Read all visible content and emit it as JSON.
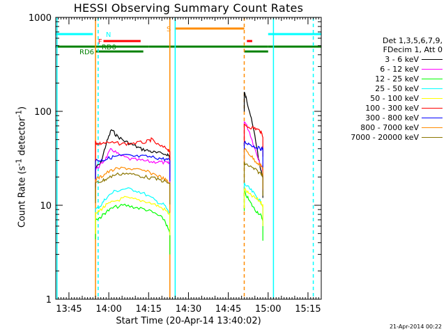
{
  "chart_data": {
    "type": "line",
    "title": "HESSI Observing Summary Count Rates",
    "xlabel": "Start Time (20-Apr-14 13:40:02)",
    "ylabel_html": "Count Rate (s<sup>-1</sup> detector<sup>-1</sup>)",
    "ylabel_text": "Count Rate (s-1 detector-1)",
    "yscale": "log",
    "ylim": [
      1,
      1000
    ],
    "yticks": [
      {
        "value": 1,
        "label": "1"
      },
      {
        "value": 10,
        "label": "10"
      },
      {
        "value": 100,
        "label": "100"
      },
      {
        "value": 1000,
        "label": "1000"
      }
    ],
    "xlim": [
      "13:40:02",
      "15:20:00"
    ],
    "xticks": [
      "13:45",
      "14:00",
      "14:15",
      "14:30",
      "14:45",
      "15:00",
      "15:15"
    ],
    "legend_placement": "right",
    "legend_header": [
      "Det 1,3,5,6,7,9,",
      "FDecim 1, Att 0"
    ],
    "series": [
      {
        "name": "3 - 6 keV",
        "color": "#000000",
        "x": [
          "13:55",
          "13:57",
          "13:59",
          "14:01",
          "14:03",
          "14:06",
          "14:09",
          "14:12",
          "14:15",
          "14:18",
          "14:22",
          "14:23",
          "14:51",
          "14:52",
          "14:53",
          "14:55",
          "14:57",
          "14:58"
        ],
        "values": [
          25,
          28,
          45,
          64,
          55,
          48,
          44,
          40,
          38,
          36,
          35,
          33,
          160,
          130,
          100,
          55,
          25,
          20
        ]
      },
      {
        "name": "6 - 12 keV",
        "color": "#ff00ff",
        "x": [
          "13:55",
          "13:57",
          "13:59",
          "14:01",
          "14:04",
          "14:08",
          "14:12",
          "14:16",
          "14:19",
          "14:22",
          "14:23",
          "14:51",
          "14:53",
          "14:55",
          "14:57",
          "14:58"
        ],
        "values": [
          24,
          27,
          32,
          40,
          34,
          31,
          30,
          29,
          29,
          28,
          28,
          80,
          60,
          40,
          28,
          24
        ]
      },
      {
        "name": "12 - 25 keV",
        "color": "#00ff00",
        "x": [
          "13:55",
          "13:57",
          "13:59",
          "14:02",
          "14:06",
          "14:10",
          "14:14",
          "14:18",
          "14:21",
          "14:23",
          "14:51",
          "14:53",
          "14:55",
          "14:57",
          "14:58"
        ],
        "values": [
          7,
          7.5,
          8.5,
          9.5,
          10,
          9.5,
          9,
          8,
          7,
          5,
          14,
          11,
          9,
          8,
          7
        ]
      },
      {
        "name": "25 - 50 keV",
        "color": "#00ffff",
        "x": [
          "13:55",
          "13:57",
          "13:59",
          "14:02",
          "14:06",
          "14:10",
          "14:14",
          "14:18",
          "14:21",
          "14:23",
          "14:51",
          "14:53",
          "14:55",
          "14:57",
          "14:58"
        ],
        "values": [
          9,
          10,
          12,
          14,
          15,
          14.5,
          13,
          11,
          10,
          8,
          17,
          15,
          13,
          11,
          10
        ]
      },
      {
        "name": "50 - 100 keV",
        "color": "#ffff00",
        "x": [
          "13:55",
          "13:57",
          "13:59",
          "14:02",
          "14:06",
          "14:10",
          "14:14",
          "14:18",
          "14:21",
          "14:23",
          "14:51",
          "14:53",
          "14:55",
          "14:57",
          "14:58"
        ],
        "values": [
          8,
          9,
          10,
          11,
          12,
          11.5,
          11,
          10,
          9,
          8,
          15,
          13,
          12,
          11,
          10
        ]
      },
      {
        "name": "100 - 300 keV",
        "color": "#ff0000",
        "x": [
          "13:55",
          "13:56",
          "13:58",
          "14:02",
          "14:06",
          "14:10",
          "14:14",
          "14:16",
          "14:19",
          "14:22",
          "14:23",
          "14:51",
          "14:53",
          "14:55",
          "14:57",
          "14:58"
        ],
        "values": [
          47,
          45,
          46,
          46,
          45,
          46,
          47,
          50,
          43,
          40,
          38,
          70,
          68,
          66,
          62,
          55
        ]
      },
      {
        "name": "300 - 800 keV",
        "color": "#0000ff",
        "x": [
          "13:55",
          "13:57",
          "13:59",
          "14:02",
          "14:06",
          "14:10",
          "14:14",
          "14:18",
          "14:21",
          "14:23",
          "14:51",
          "14:53",
          "14:55",
          "14:57",
          "14:58"
        ],
        "values": [
          30,
          30,
          31,
          33,
          34,
          33,
          33,
          32,
          31,
          30,
          47,
          45,
          42,
          40,
          40
        ]
      },
      {
        "name": "800 - 7000 keV",
        "color": "#ff8c00",
        "x": [
          "13:55",
          "13:57",
          "13:59",
          "14:02",
          "14:06",
          "14:10",
          "14:14",
          "14:18",
          "14:21",
          "14:23",
          "14:51",
          "14:53",
          "14:55",
          "14:57",
          "14:58"
        ],
        "values": [
          19,
          20,
          22,
          24,
          25,
          24,
          23,
          21,
          19,
          17,
          40,
          35,
          30,
          27,
          25
        ]
      },
      {
        "name": "7000 - 20000 keV",
        "color": "#8b7500",
        "x": [
          "13:55",
          "13:57",
          "13:59",
          "14:02",
          "14:06",
          "14:10",
          "14:14",
          "14:18",
          "14:21",
          "14:23",
          "14:51",
          "14:53",
          "14:55",
          "14:57",
          "14:58"
        ],
        "values": [
          17,
          18,
          19,
          21,
          22,
          21,
          20,
          19,
          18,
          17,
          28,
          26,
          24,
          22,
          21
        ]
      }
    ],
    "flag_bars": [
      {
        "label": "N",
        "color": "#00ffff",
        "segments": [
          [
            "13:40",
            "13:54"
          ],
          [
            "15:00",
            "15:20"
          ]
        ]
      },
      {
        "label": "F",
        "color": "#ff0000",
        "segments": [
          [
            "13:58",
            "14:12"
          ],
          [
            "14:52",
            "14:54"
          ]
        ]
      },
      {
        "label": "RD0",
        "color": "#008000",
        "segments": [
          [
            "13:40",
            "14:15"
          ],
          [
            "14:15",
            "14:51"
          ],
          [
            "14:51",
            "15:00"
          ],
          [
            "15:00",
            "15:20"
          ]
        ]
      },
      {
        "label": "RD6",
        "color": "#008000",
        "segments": [
          [
            "13:55",
            "14:13"
          ],
          [
            "14:51",
            "15:00"
          ]
        ]
      },
      {
        "label": "S",
        "color": "#ff8c00",
        "segments": [
          [
            "14:25",
            "14:51"
          ]
        ]
      }
    ],
    "event_lines": [
      {
        "time": "13:40:30",
        "color": "#00ffff",
        "style": "solid"
      },
      {
        "time": "13:56",
        "color": "#00ffff",
        "style": "dashed"
      },
      {
        "time": "14:25",
        "color": "#00ffff",
        "style": "solid"
      },
      {
        "time": "15:02",
        "color": "#00ffff",
        "style": "solid"
      },
      {
        "time": "15:17",
        "color": "#00ffff",
        "style": "dashed"
      },
      {
        "time": "13:55",
        "color": "#ff8c00",
        "style": "solid"
      },
      {
        "time": "14:23",
        "color": "#ff8c00",
        "style": "solid"
      },
      {
        "time": "14:51",
        "color": "#ff8c00",
        "style": "dashed"
      }
    ],
    "grid": false
  },
  "footer_text": "21-Apr-2014 00:22"
}
